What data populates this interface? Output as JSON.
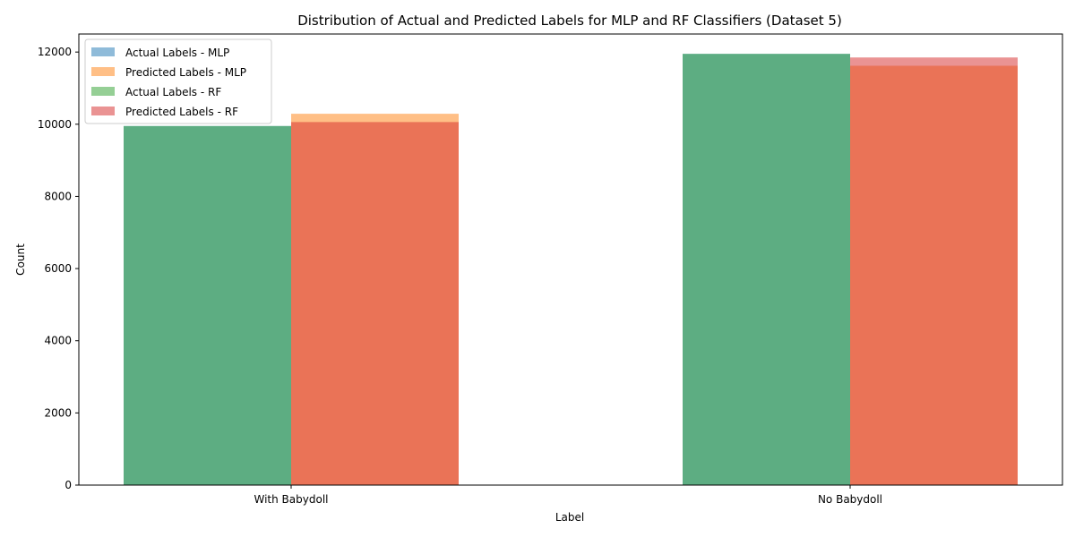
{
  "chart_data": {
    "type": "bar",
    "title": "Distribution of Actual and Predicted Labels for MLP and RF Classifiers (Dataset 5)",
    "xlabel": "Label",
    "ylabel": "Count",
    "categories": [
      "With Babydoll",
      "No Babydoll"
    ],
    "ylim": [
      0,
      12500
    ],
    "yticks": [
      0,
      2000,
      4000,
      6000,
      8000,
      10000,
      12000
    ],
    "grid": false,
    "legend_position": "top-left",
    "series": [
      {
        "name": "Actual Labels - MLP",
        "values": [
          9950,
          11950
        ],
        "color": "#1f77b4",
        "slot": 0
      },
      {
        "name": "Predicted Labels - MLP",
        "values": [
          10290,
          11620
        ],
        "color": "#ff7f0e",
        "slot": 1
      },
      {
        "name": "Actual Labels - RF",
        "values": [
          9950,
          11950
        ],
        "color": "#2ca02c",
        "slot": 0
      },
      {
        "name": "Predicted Labels - RF",
        "values": [
          10060,
          11850
        ],
        "color": "#d62728",
        "slot": 1
      }
    ],
    "bar_alpha": 0.5
  }
}
